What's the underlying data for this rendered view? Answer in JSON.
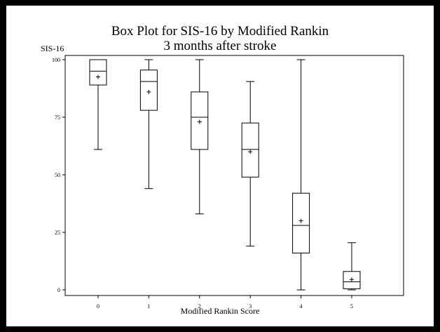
{
  "chart_data": {
    "type": "box",
    "title": "Box Plot for SIS-16 by Modified Rankin",
    "subtitle": "3 months after stroke",
    "ylabel": "SIS-16",
    "xlabel": "Modified Rankin Score",
    "ylim": [
      0,
      100
    ],
    "yticks": [
      "0",
      "25",
      "50",
      "75",
      "100"
    ],
    "categories": [
      "0",
      "1",
      "2",
      "3",
      "4",
      "5"
    ],
    "boxes": [
      {
        "min": 61,
        "q1": 89,
        "median": 95,
        "q3": 100,
        "max": 100,
        "mean": 92.5
      },
      {
        "min": 44,
        "q1": 78,
        "median": 90.5,
        "q3": 95.5,
        "max": 100,
        "mean": 86
      },
      {
        "min": 33,
        "q1": 61,
        "median": 75,
        "q3": 86,
        "max": 100,
        "mean": 73
      },
      {
        "min": 19,
        "q1": 49,
        "median": 61,
        "q3": 72.5,
        "max": 90.5,
        "mean": 60
      },
      {
        "min": 0,
        "q1": 16,
        "median": 28,
        "q3": 42,
        "max": 100,
        "mean": 30
      },
      {
        "min": 0,
        "q1": 0.5,
        "median": 3.5,
        "q3": 8,
        "max": 20.5,
        "mean": 4.5
      }
    ],
    "grid": false,
    "legend": "none"
  }
}
